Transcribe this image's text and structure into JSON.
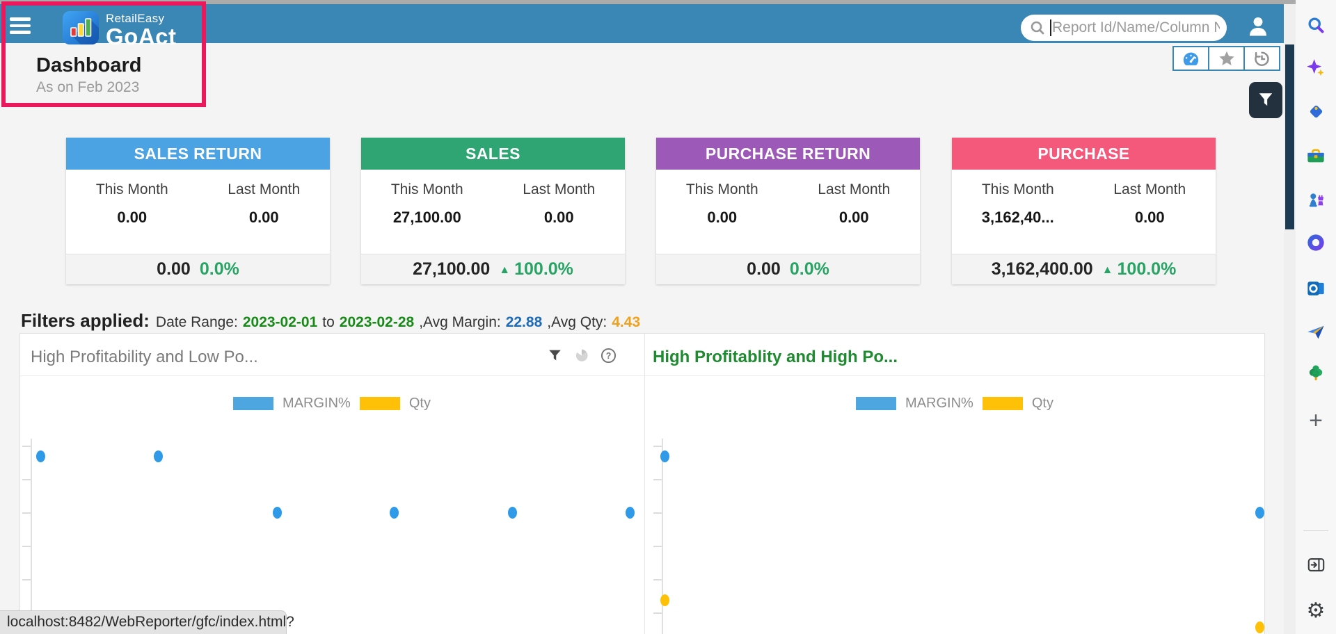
{
  "window": {
    "status_url": "localhost:8482/WebReporter/gfc/index.html?5537"
  },
  "header": {
    "brand_top": "RetailEasy",
    "brand_bottom": "GoAct",
    "search_placeholder": "Report Id/Name/Column N",
    "bar_color": "#3A86B5"
  },
  "page": {
    "title": "Dashboard",
    "subtitle": "As on Feb 2023"
  },
  "toolbar": {
    "buttons": [
      {
        "name": "dashboard-gauge",
        "active": true
      },
      {
        "name": "favorites-star",
        "active": false
      },
      {
        "name": "history",
        "active": false
      }
    ]
  },
  "kpi_cards": [
    {
      "title": "SALES RETURN",
      "header_color": "#4BA3E3",
      "this_month_label": "This Month",
      "last_month_label": "Last Month",
      "this_month": "0.00",
      "last_month": "0.00",
      "total": "0.00",
      "change_pct": "0.0%",
      "trend_up": false
    },
    {
      "title": "SALES",
      "header_color": "#2EA573",
      "this_month_label": "This Month",
      "last_month_label": "Last Month",
      "this_month": "27,100.00",
      "last_month": "0.00",
      "total": "27,100.00",
      "change_pct": "100.0%",
      "trend_up": true
    },
    {
      "title": "PURCHASE RETURN",
      "header_color": "#9C59B8",
      "this_month_label": "This Month",
      "last_month_label": "Last Month",
      "this_month": "0.00",
      "last_month": "0.00",
      "total": "0.00",
      "change_pct": "0.0%",
      "trend_up": false
    },
    {
      "title": "PURCHASE",
      "header_color": "#F4587A",
      "this_month_label": "This Month",
      "last_month_label": "Last Month",
      "this_month": "3,162,40...",
      "last_month": "0.00",
      "total": "3,162,400.00",
      "change_pct": "100.0%",
      "trend_up": true
    }
  ],
  "filters": {
    "label": "Filters applied:",
    "date_range_label": "Date Range:",
    "date_from": "2023-02-01",
    "to_text": "to",
    "date_to": "2023-02-28",
    "avg_margin_label": ",Avg Margin:",
    "avg_margin": "22.88",
    "avg_qty_label": ",Avg Qty:",
    "avg_qty": "4.43",
    "colors": {
      "date": "#198A19",
      "margin": "#1E6BB8",
      "qty": "#EFA11D"
    }
  },
  "chart_data": [
    {
      "type": "scatter",
      "title": "High Profitability and Low Po...",
      "title_color": "#7A7A7A",
      "title_bold": false,
      "legend": [
        {
          "name": "MARGIN%",
          "color": "#4DA6E0"
        },
        {
          "name": "Qty",
          "color": "#FFC107"
        }
      ],
      "y_tick_count": 6,
      "points": [
        {
          "series": "MARGIN%",
          "x_frac": 0.017,
          "y_frac": 0.092
        },
        {
          "series": "MARGIN%",
          "x_frac": 0.209,
          "y_frac": 0.092
        },
        {
          "series": "MARGIN%",
          "x_frac": 0.404,
          "y_frac": 0.379
        },
        {
          "series": "MARGIN%",
          "x_frac": 0.596,
          "y_frac": 0.379
        },
        {
          "series": "MARGIN%",
          "x_frac": 0.79,
          "y_frac": 0.379
        },
        {
          "series": "MARGIN%",
          "x_frac": 0.982,
          "y_frac": 0.379
        }
      ]
    },
    {
      "type": "scatter",
      "title": "High Profitablity and High Po...",
      "title_color": "#1F8B30",
      "title_bold": true,
      "legend": [
        {
          "name": "MARGIN%",
          "color": "#4DA6E0"
        },
        {
          "name": "Qty",
          "color": "#FFC107"
        }
      ],
      "y_tick_count": 6,
      "points": [
        {
          "series": "MARGIN%",
          "x_frac": 0.005,
          "y_frac": 0.092
        },
        {
          "series": "Qty",
          "x_frac": 0.005,
          "y_frac": 0.823
        },
        {
          "series": "MARGIN%",
          "x_frac": 0.993,
          "y_frac": 0.379
        },
        {
          "series": "Qty",
          "x_frac": 0.993,
          "y_frac": 0.961
        }
      ]
    }
  ],
  "edge_sidebar": {
    "items": [
      {
        "name": "search"
      },
      {
        "name": "copilot"
      },
      {
        "name": "price-tag"
      },
      {
        "name": "toolbox"
      },
      {
        "name": "games"
      },
      {
        "name": "microsoft-365"
      },
      {
        "name": "outlook"
      },
      {
        "name": "paper-plane"
      },
      {
        "name": "tree"
      },
      {
        "name": "add"
      },
      {
        "name": "divider"
      },
      {
        "name": "panel-toggle"
      },
      {
        "name": "settings"
      }
    ]
  }
}
